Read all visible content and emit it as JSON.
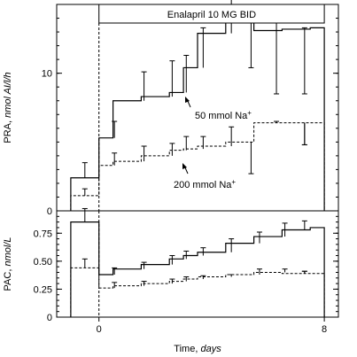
{
  "chart_data": [
    {
      "type": "step",
      "panel": "top",
      "ylabel_main": "PRA, ",
      "ylabel_unit": "nmol AI/l/h",
      "ylim": [
        0,
        15
      ],
      "yticks": [
        0,
        10
      ],
      "ytick_labels": [
        "0",
        "10"
      ],
      "treatment_label": "Enalapril 10 MG BID",
      "series": [
        {
          "name": "50 mmol Na+",
          "style": "solid",
          "x_start": [
            -1,
            0,
            0.5,
            1.5,
            2.5,
            3,
            3.5,
            4.5,
            5.5,
            6.5,
            7.5
          ],
          "x_end": [
            0,
            0.5,
            1.5,
            2.5,
            3,
            3.5,
            4.5,
            5.5,
            6.5,
            7.5,
            8
          ],
          "values": [
            2.4,
            5.3,
            8.0,
            8.3,
            8.6,
            10.4,
            12.9,
            14.3,
            13.1,
            13.2,
            13.3
          ],
          "error_upper": [
            3.5,
            6.5,
            10.1,
            10.9,
            11.3,
            13.3,
            16.5,
            14.3,
            14.0,
            13.3,
            13.3
          ],
          "error_lower": [
            null,
            null,
            null,
            null,
            null,
            null,
            null,
            10.4,
            8.5,
            8.5,
            null
          ],
          "error_x": [
            -0.5,
            0.55,
            1.6,
            2.6,
            3.1,
            3.7,
            4.7,
            5.4,
            6.3,
            7.3,
            null
          ]
        },
        {
          "name": "200 mmol Na+",
          "style": "dashed",
          "x_start": [
            -1,
            0,
            0.5,
            1.5,
            2.5,
            3,
            3.5,
            4.5,
            5.5,
            6.5,
            7.5
          ],
          "x_end": [
            0,
            0.5,
            1.5,
            2.5,
            3,
            3.5,
            4.5,
            5.5,
            6.5,
            7.5,
            8
          ],
          "values": [
            1.1,
            3.3,
            3.6,
            4.0,
            4.4,
            4.5,
            4.7,
            5.0,
            6.4,
            6.4,
            6.4
          ],
          "error_upper": [
            1.6,
            4.2,
            4.7,
            4.9,
            5.4,
            5.4,
            6.1,
            null,
            6.5,
            6.1,
            6.4
          ],
          "error_lower": [
            null,
            null,
            null,
            null,
            null,
            null,
            null,
            2.7,
            null,
            4.8,
            4.8
          ],
          "error_x": [
            -0.5,
            0.55,
            1.6,
            2.6,
            3.1,
            3.7,
            4.7,
            5.4,
            6.3,
            7.3,
            7.3
          ]
        }
      ],
      "annotations": [
        {
          "text": "50 mmol Na",
          "sup": "+",
          "points_to_series": "50 mmol Na+"
        },
        {
          "text": "200 mmol Na",
          "sup": "+",
          "points_to_series": "200 mmol Na+"
        }
      ]
    },
    {
      "type": "step",
      "panel": "bottom",
      "ylabel_main": "PAC, ",
      "ylabel_unit": "nmol/L",
      "ylim": [
        0,
        0.95
      ],
      "yticks": [
        0,
        0.25,
        0.5,
        0.75
      ],
      "ytick_labels": [
        "0",
        "0.25",
        "0.50",
        "0.75"
      ],
      "xlabel_main": "Time, ",
      "xlabel_unit": "days",
      "xticks": [
        0,
        8
      ],
      "xtick_labels": [
        "0",
        "8"
      ],
      "xlim": [
        -1.5,
        8.5
      ],
      "series": [
        {
          "name": "50 mmol Na+",
          "style": "solid",
          "x_start": [
            -1,
            0,
            0.5,
            1.5,
            2.5,
            3,
            3.5,
            4.5,
            5.5,
            6.5,
            7.5
          ],
          "x_end": [
            0,
            0.5,
            1.5,
            2.5,
            3,
            3.5,
            4.5,
            5.5,
            6.5,
            7.5,
            8
          ],
          "values": [
            0.85,
            0.38,
            0.43,
            0.47,
            0.52,
            0.55,
            0.58,
            0.66,
            0.72,
            0.78,
            0.8
          ],
          "error_upper": [
            0.97,
            0.44,
            0.49,
            0.55,
            0.59,
            0.62,
            0.7,
            0.76,
            0.84,
            0.86,
            0.8
          ],
          "error_x": [
            -0.5,
            0.55,
            1.6,
            2.6,
            3.1,
            3.7,
            4.7,
            5.7,
            6.6,
            7.3,
            null
          ]
        },
        {
          "name": "200 mmol Na+",
          "style": "dashed",
          "x_start": [
            -1,
            0,
            0.5,
            1.5,
            2.5,
            3,
            3.5,
            4.5,
            5.5,
            6.5,
            7.5
          ],
          "x_end": [
            0,
            0.5,
            1.5,
            2.5,
            3,
            3.5,
            4.5,
            5.5,
            6.5,
            7.5,
            8
          ],
          "values": [
            0.44,
            0.26,
            0.28,
            0.3,
            0.32,
            0.34,
            0.36,
            0.38,
            0.4,
            0.39,
            0.39
          ],
          "error_upper": [
            0.52,
            0.31,
            0.32,
            0.34,
            0.36,
            0.37,
            0.38,
            0.43,
            0.43,
            0.41,
            0.41
          ],
          "error_x": [
            -0.5,
            0.55,
            1.6,
            2.6,
            3.1,
            3.7,
            4.7,
            5.7,
            6.6,
            7.3,
            7.3
          ]
        }
      ]
    }
  ]
}
